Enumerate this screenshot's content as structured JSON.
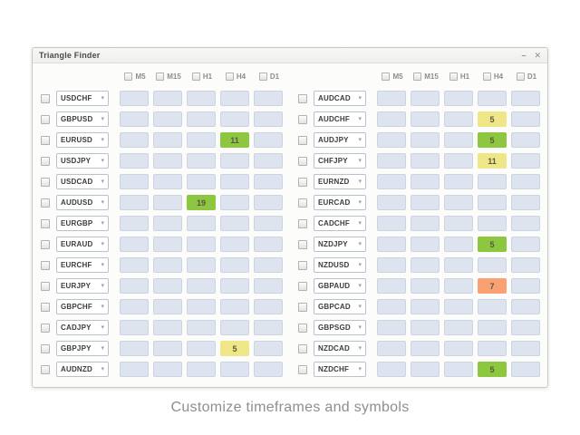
{
  "window": {
    "title": "Triangle Finder",
    "minimize_label": "–",
    "close_label": "✕"
  },
  "timeframes": [
    "M5",
    "M15",
    "H1",
    "H4",
    "D1"
  ],
  "colors": {
    "green": "#8dc63f",
    "yellow": "#efe687",
    "orange": "#f9a173",
    "cell_default": "#dee4ef"
  },
  "left_rows": [
    {
      "pair": "USDCHF",
      "cells": [
        null,
        null,
        null,
        null,
        null
      ]
    },
    {
      "pair": "GBPUSD",
      "cells": [
        null,
        null,
        null,
        null,
        null
      ]
    },
    {
      "pair": "EURUSD",
      "cells": [
        null,
        null,
        null,
        {
          "value": "11",
          "color": "green"
        },
        null
      ]
    },
    {
      "pair": "USDJPY",
      "cells": [
        null,
        null,
        null,
        null,
        null
      ]
    },
    {
      "pair": "USDCAD",
      "cells": [
        null,
        null,
        null,
        null,
        null
      ]
    },
    {
      "pair": "AUDUSD",
      "cells": [
        null,
        null,
        {
          "value": "19",
          "color": "green"
        },
        null,
        null
      ]
    },
    {
      "pair": "EURGBP",
      "cells": [
        null,
        null,
        null,
        null,
        null
      ]
    },
    {
      "pair": "EURAUD",
      "cells": [
        null,
        null,
        null,
        null,
        null
      ]
    },
    {
      "pair": "EURCHF",
      "cells": [
        null,
        null,
        null,
        null,
        null
      ]
    },
    {
      "pair": "EURJPY",
      "cells": [
        null,
        null,
        null,
        null,
        null
      ]
    },
    {
      "pair": "GBPCHF",
      "cells": [
        null,
        null,
        null,
        null,
        null
      ]
    },
    {
      "pair": "CADJPY",
      "cells": [
        null,
        null,
        null,
        null,
        null
      ]
    },
    {
      "pair": "GBPJPY",
      "cells": [
        null,
        null,
        null,
        {
          "value": "5",
          "color": "yellow"
        },
        null
      ]
    },
    {
      "pair": "AUDNZD",
      "cells": [
        null,
        null,
        null,
        null,
        null
      ]
    }
  ],
  "right_rows": [
    {
      "pair": "AUDCAD",
      "cells": [
        null,
        null,
        null,
        null,
        null
      ]
    },
    {
      "pair": "AUDCHF",
      "cells": [
        null,
        null,
        null,
        {
          "value": "5",
          "color": "yellow"
        },
        null
      ]
    },
    {
      "pair": "AUDJPY",
      "cells": [
        null,
        null,
        null,
        {
          "value": "5",
          "color": "green"
        },
        null
      ]
    },
    {
      "pair": "CHFJPY",
      "cells": [
        null,
        null,
        null,
        {
          "value": "11",
          "color": "yellow"
        },
        null
      ]
    },
    {
      "pair": "EURNZD",
      "cells": [
        null,
        null,
        null,
        null,
        null
      ]
    },
    {
      "pair": "EURCAD",
      "cells": [
        null,
        null,
        null,
        null,
        null
      ]
    },
    {
      "pair": "CADCHF",
      "cells": [
        null,
        null,
        null,
        null,
        null
      ]
    },
    {
      "pair": "NZDJPY",
      "cells": [
        null,
        null,
        null,
        {
          "value": "5",
          "color": "green"
        },
        null
      ]
    },
    {
      "pair": "NZDUSD",
      "cells": [
        null,
        null,
        null,
        null,
        null
      ]
    },
    {
      "pair": "GBPAUD",
      "cells": [
        null,
        null,
        null,
        {
          "value": "7",
          "color": "orange"
        },
        null
      ]
    },
    {
      "pair": "GBPCAD",
      "cells": [
        null,
        null,
        null,
        null,
        null
      ]
    },
    {
      "pair": "GBPSGD",
      "cells": [
        null,
        null,
        null,
        null,
        null
      ]
    },
    {
      "pair": "NZDCAD",
      "cells": [
        null,
        null,
        null,
        null,
        null
      ]
    },
    {
      "pair": "NZDCHF",
      "cells": [
        null,
        null,
        null,
        {
          "value": "5",
          "color": "green"
        },
        null
      ]
    }
  ],
  "caption": "Customize timeframes and symbols"
}
